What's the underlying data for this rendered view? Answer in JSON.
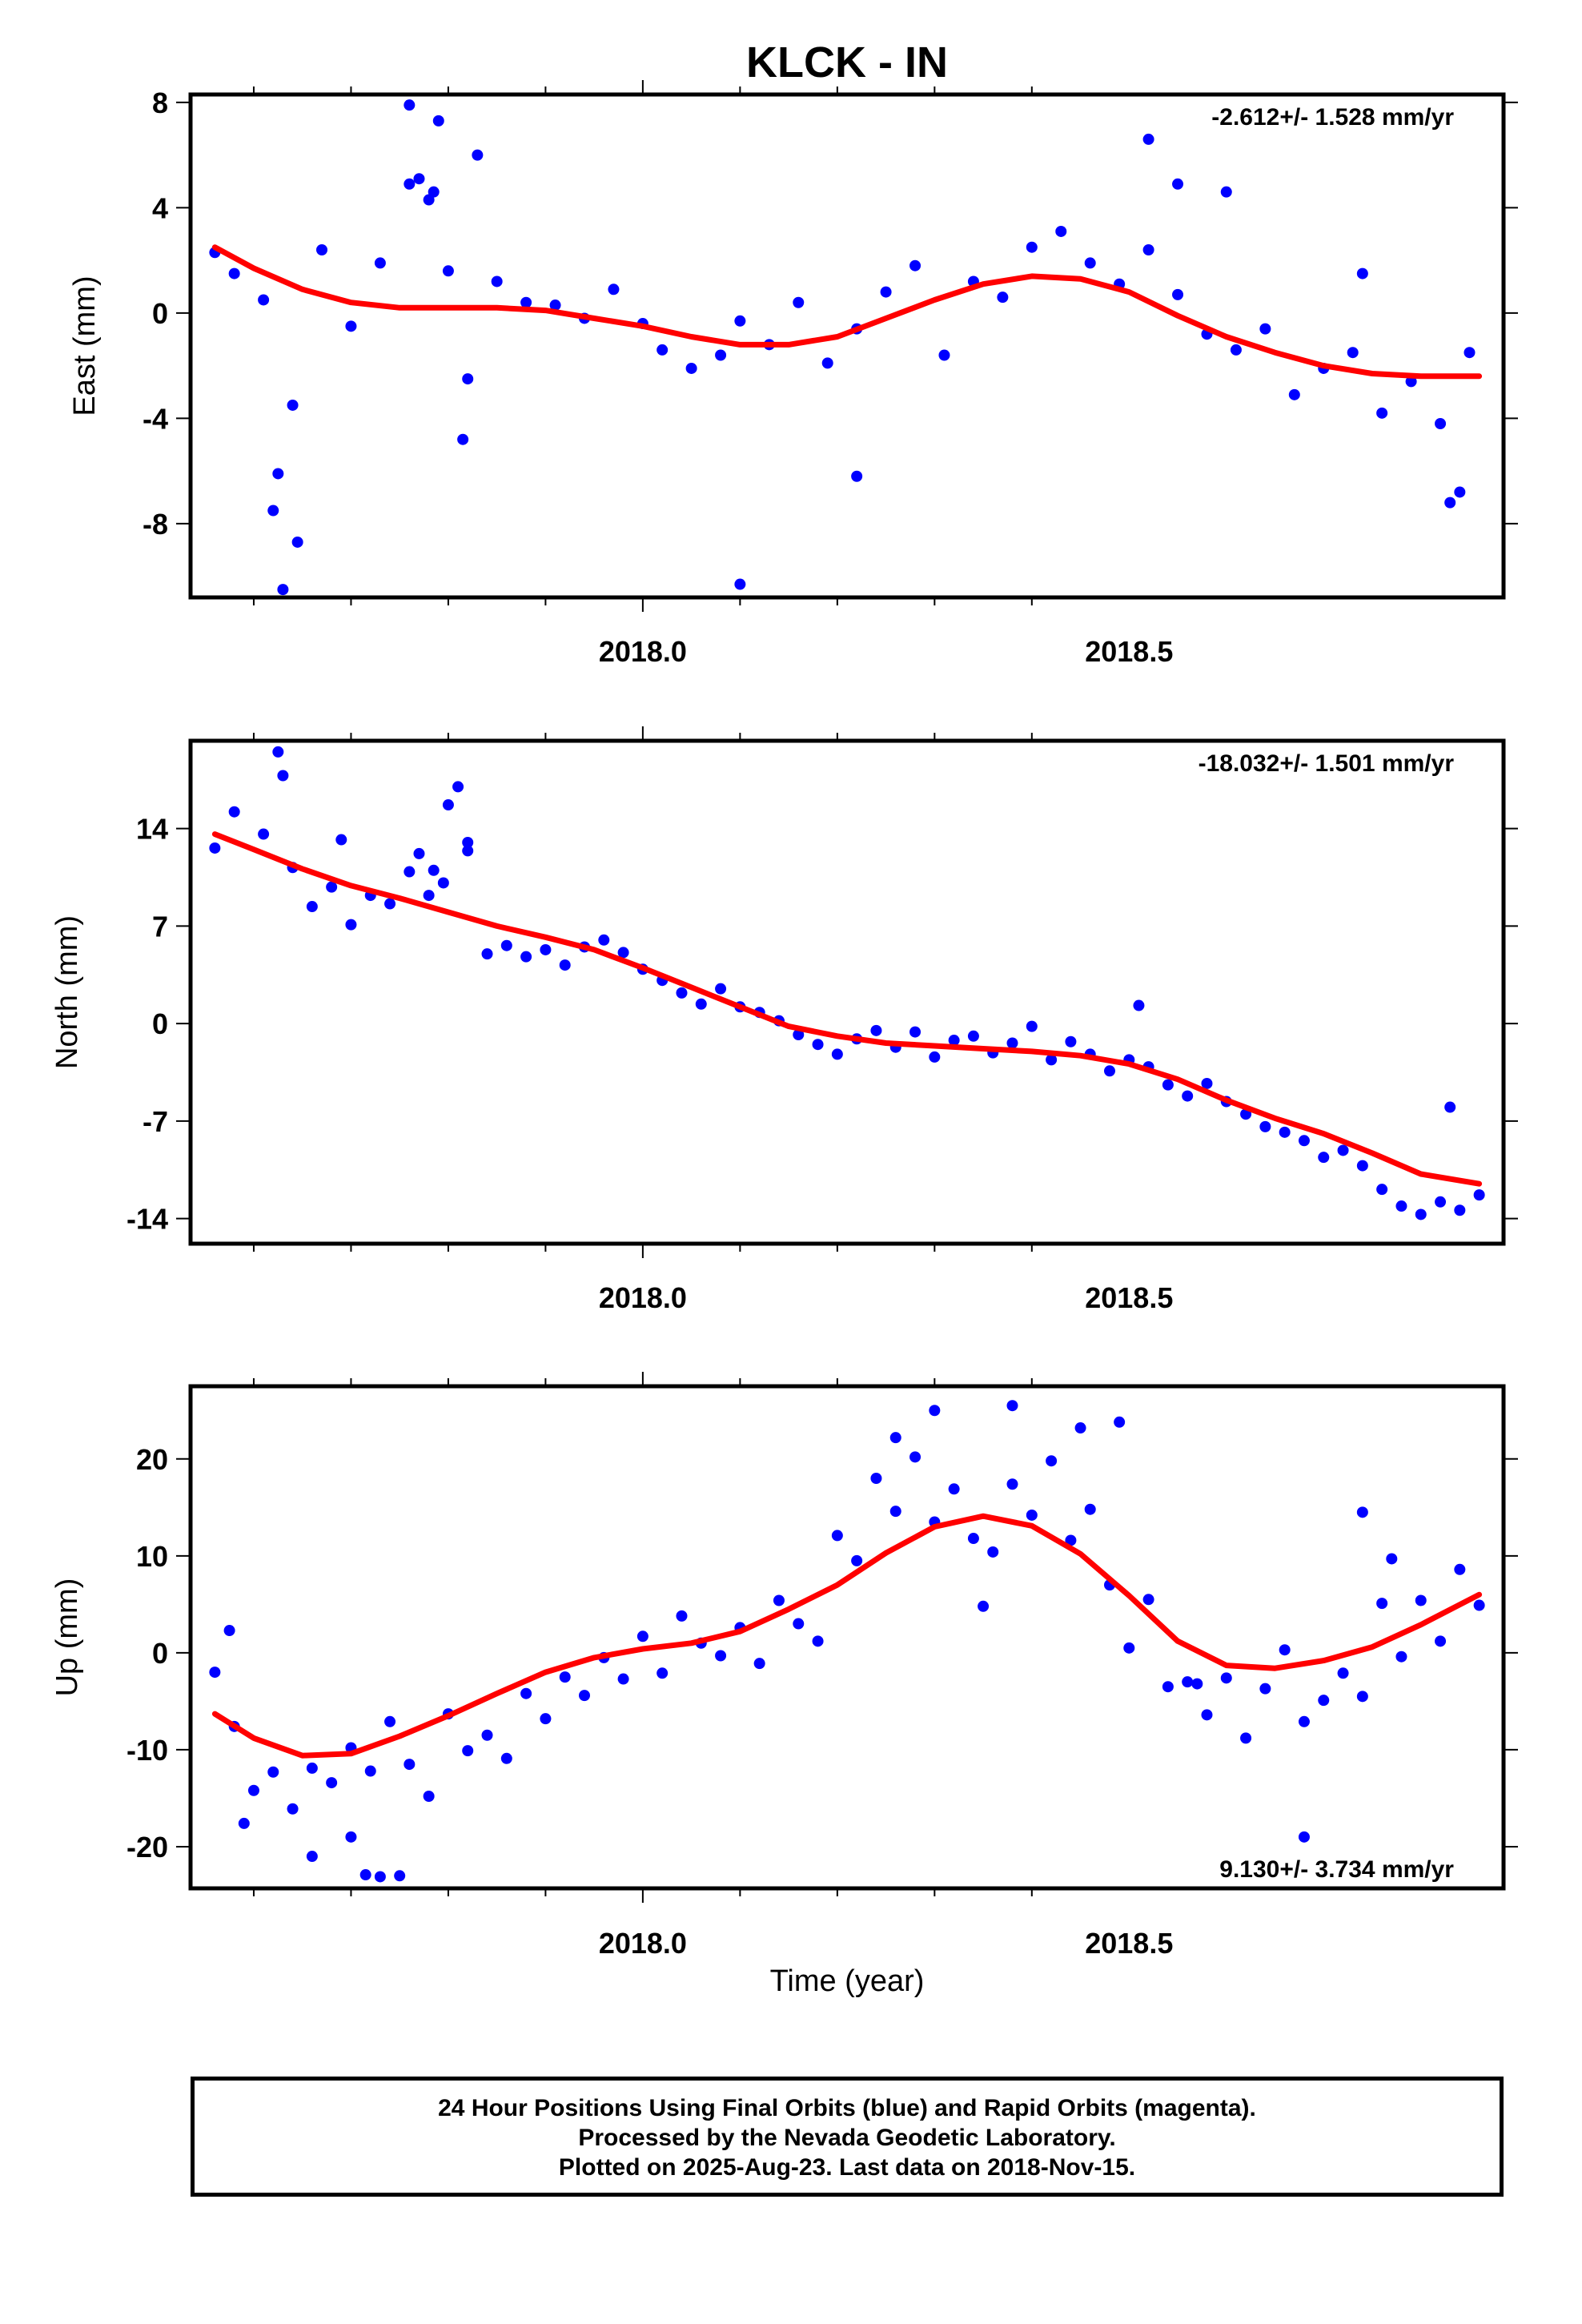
{
  "figure": {
    "title": "KLCK - IN",
    "xlabel": "Time (year)",
    "caption": [
      "24 Hour Positions Using Final Orbits (blue) and Rapid Orbits (magenta).",
      "Processed by the Nevada Geodetic Laboratory.",
      "Plotted on 2025-Aug-23. Last data on 2018-Nov-15."
    ],
    "colors": {
      "points": "#0000ff",
      "fit": "#ff0000",
      "frame": "#000000"
    }
  },
  "chart_data": [
    {
      "type": "scatter",
      "ylabel": "East (mm)",
      "rate_label": "-2.612+/- 1.528 mm/yr",
      "xlim": [
        2017.535,
        2018.885
      ],
      "ylim": [
        -10.8,
        8.3
      ],
      "x_ticks": [
        "2018.0",
        "2018.5"
      ],
      "y_ticks": [
        8,
        4,
        0,
        -4,
        -8
      ],
      "series": [
        {
          "mode": "markers",
          "x": [
            2017.56,
            2017.58,
            2017.61,
            2017.64,
            2017.67,
            2017.7,
            2017.73,
            2017.76,
            2017.78,
            2017.8,
            2017.82,
            2017.85,
            2017.88,
            2017.91,
            2017.94,
            2017.97,
            2018.0,
            2018.02,
            2018.05,
            2018.08,
            2018.1,
            2018.13,
            2018.16,
            2018.19,
            2018.22,
            2018.25,
            2018.28,
            2018.31,
            2018.34,
            2018.37,
            2018.4,
            2018.43,
            2018.46,
            2018.49,
            2018.52,
            2018.55,
            2018.58,
            2018.61,
            2018.64,
            2018.67,
            2018.7,
            2018.73,
            2018.76,
            2018.79,
            2018.82,
            2018.85,
            2017.62,
            2017.625,
            2017.63,
            2017.645,
            2017.76,
            2017.77,
            2017.785,
            2017.79,
            2017.815,
            2017.83,
            2018.1,
            2018.22,
            2018.52,
            2018.55,
            2018.6,
            2018.74,
            2018.83,
            2018.84
          ],
          "y": [
            2.3,
            1.5,
            0.5,
            -3.5,
            2.4,
            -0.5,
            1.9,
            4.9,
            4.3,
            1.6,
            -2.5,
            1.2,
            0.4,
            0.3,
            -0.2,
            0.9,
            -0.4,
            -1.4,
            -2.1,
            -1.6,
            -0.3,
            -1.2,
            0.4,
            -1.9,
            -0.6,
            0.8,
            1.8,
            -1.6,
            1.2,
            0.6,
            2.5,
            3.1,
            1.9,
            1.1,
            2.4,
            0.7,
            -0.8,
            -1.4,
            -0.6,
            -3.1,
            -2.1,
            -1.5,
            -3.8,
            -2.6,
            -4.2,
            -1.5,
            -7.5,
            -6.1,
            -10.5,
            -8.7,
            7.9,
            5.1,
            4.6,
            7.3,
            -4.8,
            6.0,
            -10.3,
            -6.2,
            6.6,
            4.9,
            4.6,
            1.5,
            -7.2,
            -6.8
          ]
        },
        {
          "mode": "line",
          "name": "",
          "x": [
            2017.56,
            2017.6,
            2017.65,
            2017.7,
            2017.75,
            2017.8,
            2017.85,
            2017.9,
            2017.95,
            2018.0,
            2018.05,
            2018.1,
            2018.15,
            2018.2,
            2018.25,
            2018.3,
            2018.35,
            2018.4,
            2018.45,
            2018.5,
            2018.55,
            2018.6,
            2018.65,
            2018.7,
            2018.75,
            2018.8,
            2018.86
          ],
          "y": [
            2.5,
            1.7,
            0.9,
            0.4,
            0.2,
            0.2,
            0.2,
            0.1,
            -0.2,
            -0.5,
            -0.9,
            -1.2,
            -1.2,
            -0.9,
            -0.2,
            0.5,
            1.1,
            1.4,
            1.3,
            0.8,
            -0.1,
            -0.9,
            -1.5,
            -2.0,
            -2.3,
            -2.4,
            -2.4
          ]
        }
      ]
    },
    {
      "type": "scatter",
      "ylabel": "North (mm)",
      "rate_label": "-18.032+/- 1.501 mm/yr",
      "xlim": [
        2017.535,
        2018.885
      ],
      "ylim": [
        -15.8,
        20.3
      ],
      "x_ticks": [
        "2018.0",
        "2018.5"
      ],
      "y_ticks": [
        14,
        7,
        0,
        -7,
        -14
      ],
      "series": [
        {
          "mode": "markers",
          "x": [
            2017.56,
            2017.58,
            2017.61,
            2017.64,
            2017.66,
            2017.68,
            2017.7,
            2017.72,
            2017.74,
            2017.76,
            2017.78,
            2017.8,
            2017.82,
            2017.84,
            2017.86,
            2017.88,
            2017.9,
            2017.92,
            2017.94,
            2017.96,
            2017.98,
            2018.0,
            2018.02,
            2018.04,
            2018.06,
            2018.08,
            2018.1,
            2018.12,
            2018.14,
            2018.16,
            2018.18,
            2018.2,
            2018.22,
            2018.24,
            2018.26,
            2018.28,
            2018.3,
            2018.32,
            2018.34,
            2018.36,
            2018.38,
            2018.4,
            2018.42,
            2018.44,
            2018.46,
            2018.48,
            2018.5,
            2018.52,
            2018.54,
            2018.56,
            2018.58,
            2018.6,
            2018.62,
            2018.64,
            2018.66,
            2018.68,
            2018.7,
            2018.72,
            2018.74,
            2018.76,
            2018.78,
            2018.8,
            2018.82,
            2018.84,
            2018.86,
            2017.625,
            2017.63,
            2017.69,
            2017.77,
            2017.785,
            2017.795,
            2017.81,
            2017.82,
            2018.51,
            2018.83
          ],
          "y": [
            12.6,
            15.2,
            13.6,
            11.2,
            8.4,
            9.8,
            7.1,
            9.2,
            8.6,
            10.9,
            9.2,
            15.7,
            12.4,
            5.0,
            5.6,
            4.8,
            5.3,
            4.2,
            5.5,
            6.0,
            5.1,
            3.9,
            3.1,
            2.2,
            1.4,
            2.5,
            1.2,
            0.8,
            0.2,
            -0.8,
            -1.5,
            -2.2,
            -1.1,
            -0.5,
            -1.7,
            -0.6,
            -2.4,
            -1.2,
            -0.9,
            -2.1,
            -1.4,
            -0.2,
            -2.6,
            -1.3,
            -2.2,
            -3.4,
            -2.6,
            -3.1,
            -4.4,
            -5.2,
            -4.3,
            -5.6,
            -6.5,
            -7.4,
            -7.8,
            -8.4,
            -9.6,
            -9.1,
            -10.2,
            -11.9,
            -13.1,
            -13.7,
            -12.8,
            -13.4,
            -12.3,
            19.5,
            17.8,
            13.2,
            12.2,
            11.0,
            10.1,
            17.0,
            13.0,
            1.3,
            -6.0
          ]
        },
        {
          "mode": "line",
          "name": "",
          "x": [
            2017.56,
            2017.6,
            2017.65,
            2017.7,
            2017.75,
            2017.8,
            2017.85,
            2017.9,
            2017.95,
            2018.0,
            2018.05,
            2018.1,
            2018.15,
            2018.2,
            2018.25,
            2018.3,
            2018.35,
            2018.4,
            2018.45,
            2018.5,
            2018.55,
            2018.6,
            2018.65,
            2018.7,
            2018.75,
            2018.8,
            2018.86
          ],
          "y": [
            13.6,
            12.5,
            11.1,
            9.9,
            9.0,
            8.0,
            7.0,
            6.2,
            5.3,
            4.0,
            2.6,
            1.2,
            -0.2,
            -0.9,
            -1.4,
            -1.6,
            -1.8,
            -2.0,
            -2.3,
            -2.9,
            -4.0,
            -5.5,
            -6.8,
            -7.9,
            -9.3,
            -10.8,
            -11.5
          ]
        }
      ]
    },
    {
      "type": "scatter",
      "ylabel": "Up (mm)",
      "rate_label": "9.130+/- 3.734 mm/yr",
      "xlim": [
        2017.535,
        2018.885
      ],
      "ylim": [
        -24.3,
        27.5
      ],
      "x_ticks": [
        "2018.0",
        "2018.5"
      ],
      "y_ticks": [
        20,
        10,
        0,
        -10,
        -20
      ],
      "series": [
        {
          "mode": "markers",
          "x": [
            2017.56,
            2017.58,
            2017.6,
            2017.62,
            2017.64,
            2017.66,
            2017.68,
            2017.7,
            2017.72,
            2017.74,
            2017.76,
            2017.78,
            2017.8,
            2017.82,
            2017.84,
            2017.86,
            2017.88,
            2017.9,
            2017.92,
            2017.94,
            2017.96,
            2017.98,
            2018.0,
            2018.02,
            2018.04,
            2018.06,
            2018.08,
            2018.1,
            2018.12,
            2018.14,
            2018.16,
            2018.18,
            2018.2,
            2018.22,
            2018.24,
            2018.26,
            2018.28,
            2018.3,
            2018.32,
            2018.34,
            2018.36,
            2018.38,
            2018.4,
            2018.42,
            2018.44,
            2018.46,
            2018.48,
            2018.5,
            2018.52,
            2018.54,
            2018.56,
            2018.58,
            2018.6,
            2018.62,
            2018.64,
            2018.66,
            2018.68,
            2018.7,
            2018.72,
            2018.74,
            2018.76,
            2018.78,
            2018.8,
            2018.82,
            2018.84,
            2018.86,
            2017.575,
            2017.59,
            2017.66,
            2017.7,
            2017.715,
            2017.73,
            2017.75,
            2018.26,
            2018.3,
            2018.35,
            2018.38,
            2018.45,
            2018.49,
            2018.57,
            2018.68,
            2018.74,
            2018.77
          ],
          "y": [
            -2.0,
            -7.6,
            -14.2,
            -12.3,
            -16.1,
            -11.9,
            -13.4,
            -9.8,
            -12.2,
            -7.1,
            -11.5,
            -14.8,
            -6.3,
            -10.1,
            -8.5,
            -10.9,
            -4.2,
            -6.8,
            -2.5,
            -4.4,
            -0.5,
            -2.7,
            1.7,
            -2.1,
            3.8,
            1.0,
            -0.3,
            2.6,
            -1.1,
            5.4,
            3.0,
            1.2,
            12.1,
            9.5,
            18.0,
            14.6,
            20.2,
            13.5,
            16.9,
            11.8,
            10.4,
            17.4,
            14.2,
            19.8,
            11.6,
            14.8,
            7.0,
            0.5,
            5.5,
            -3.5,
            -3.0,
            -6.4,
            -2.6,
            -8.8,
            -3.7,
            0.3,
            -7.1,
            -4.9,
            -2.1,
            -4.5,
            5.1,
            -0.4,
            5.4,
            1.2,
            8.6,
            4.9,
            2.3,
            -17.6,
            -21.0,
            -19.0,
            -22.9,
            -23.1,
            -23.0,
            22.2,
            25.0,
            4.8,
            25.5,
            23.2,
            23.8,
            -3.2,
            -19.0,
            14.5,
            9.7
          ]
        },
        {
          "mode": "line",
          "name": "",
          "x": [
            2017.56,
            2017.6,
            2017.65,
            2017.7,
            2017.75,
            2017.8,
            2017.85,
            2017.9,
            2017.95,
            2018.0,
            2018.05,
            2018.1,
            2018.15,
            2018.2,
            2018.25,
            2018.3,
            2018.35,
            2018.4,
            2018.45,
            2018.5,
            2018.55,
            2018.6,
            2018.65,
            2018.7,
            2018.75,
            2018.8,
            2018.86
          ],
          "y": [
            -6.3,
            -8.8,
            -10.6,
            -10.4,
            -8.6,
            -6.5,
            -4.2,
            -2.0,
            -0.5,
            0.4,
            1.0,
            2.2,
            4.5,
            7.0,
            10.3,
            13.0,
            14.1,
            13.1,
            10.2,
            5.9,
            1.2,
            -1.3,
            -1.6,
            -0.8,
            0.6,
            2.9,
            6.0
          ]
        }
      ]
    }
  ]
}
